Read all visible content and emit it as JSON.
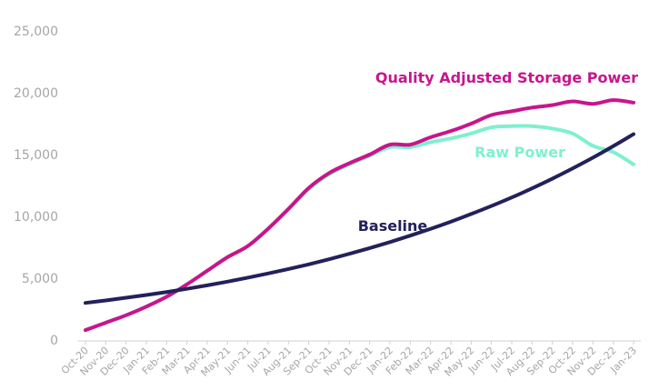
{
  "chart_data": {
    "type": "line",
    "title": "",
    "xlabel": "",
    "ylabel": "",
    "ylim": [
      0,
      25000
    ],
    "yticks": [
      "0",
      "5,000",
      "10,000",
      "15,000",
      "20,000",
      "25,000"
    ],
    "ytick_values": [
      0,
      5000,
      10000,
      15000,
      20000,
      25000
    ],
    "grid": false,
    "categories": [
      "Oct-20",
      "Nov-20",
      "Dec-20",
      "Jan-21",
      "Feb-21",
      "Mar-21",
      "Apr-21",
      "May-21",
      "Jun-21",
      "Jul-21",
      "Aug-21",
      "Sep-21",
      "Oct-21",
      "Nov-21",
      "Dec-21",
      "Jan-22",
      "Feb-22",
      "Mar-22",
      "Apr-22",
      "May-22",
      "Jun-22",
      "Jul-22",
      "Aug-22",
      "Sep-22",
      "Oct-22",
      "Nov-22",
      "Dec-22",
      "Jan-23"
    ],
    "series": [
      {
        "name": "Quality Adjusted Storage Power",
        "color": "#c8158c",
        "values": [
          800,
          1400,
          2000,
          2700,
          3500,
          4500,
          5600,
          6700,
          7600,
          9000,
          10600,
          12300,
          13500,
          14300,
          15000,
          15800,
          15800,
          16400,
          16900,
          17500,
          18200,
          18500,
          18800,
          19000,
          19300,
          19100,
          19400,
          19200
        ]
      },
      {
        "name": "Raw Power",
        "color": "#7ff0cf",
        "values": [
          800,
          1400,
          2000,
          2700,
          3500,
          4500,
          5600,
          6700,
          7600,
          9000,
          10600,
          12200,
          13400,
          14200,
          14900,
          15600,
          15600,
          16000,
          16300,
          16700,
          17200,
          17300,
          17300,
          17100,
          16700,
          15700,
          15200,
          14200
        ]
      },
      {
        "name": "Baseline",
        "color": "#22215b",
        "values": [
          3000,
          3200,
          3420,
          3640,
          3880,
          4140,
          4420,
          4720,
          5040,
          5380,
          5740,
          6120,
          6530,
          6970,
          7430,
          7920,
          8440,
          8990,
          9570,
          10190,
          10840,
          11530,
          12270,
          13050,
          13880,
          14750,
          15680,
          16650
        ]
      }
    ]
  }
}
